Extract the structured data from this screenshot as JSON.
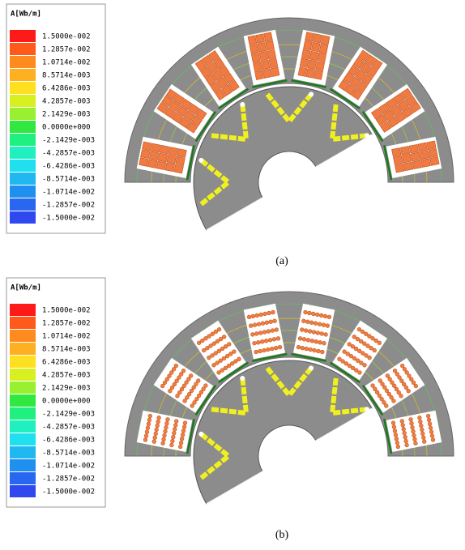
{
  "panels": [
    {
      "legend": {
        "title": "A[Wb/m]",
        "labels": [
          "1.5000e-002",
          "1.2857e-002",
          "1.0714e-002",
          "8.5714e-003",
          "6.4286e-003",
          "4.2857e-003",
          "2.1429e-003",
          "0.0000e+000",
          "-2.1429e-003",
          "-4.2857e-003",
          "-6.4286e-003",
          "-8.5714e-003",
          "-1.0714e-002",
          "-1.2857e-002",
          "-1.5000e-002"
        ],
        "colors": [
          "#ff1a1a",
          "#ff5a1a",
          "#ff8a20",
          "#ffb020",
          "#ffe020",
          "#d8f020",
          "#98f030",
          "#30e840",
          "#20f080",
          "#20f0c0",
          "#20e0f0",
          "#20b8f0",
          "#2090f0",
          "#2868f0",
          "#3048f0"
        ]
      },
      "caption": "(a)"
    },
    {
      "legend": {
        "title": "A[Wb/m]",
        "labels": [
          "1.5000e-002",
          "1.2857e-002",
          "1.0714e-002",
          "8.5714e-003",
          "6.4286e-003",
          "4.2857e-003",
          "2.1429e-003",
          "0.0000e+000",
          "-2.1429e-003",
          "-4.2857e-003",
          "-6.4286e-003",
          "-8.5714e-003",
          "-1.0714e-002",
          "-1.2857e-002",
          "-1.5000e-002"
        ],
        "colors": [
          "#ff1a1a",
          "#ff5a1a",
          "#ff8a20",
          "#ffb020",
          "#ffe020",
          "#d8f020",
          "#98f030",
          "#30e840",
          "#20f080",
          "#20f0c0",
          "#20e0f0",
          "#20b8f0",
          "#2090f0",
          "#2868f0",
          "#3048f0"
        ]
      },
      "caption": "(b)"
    }
  ]
}
